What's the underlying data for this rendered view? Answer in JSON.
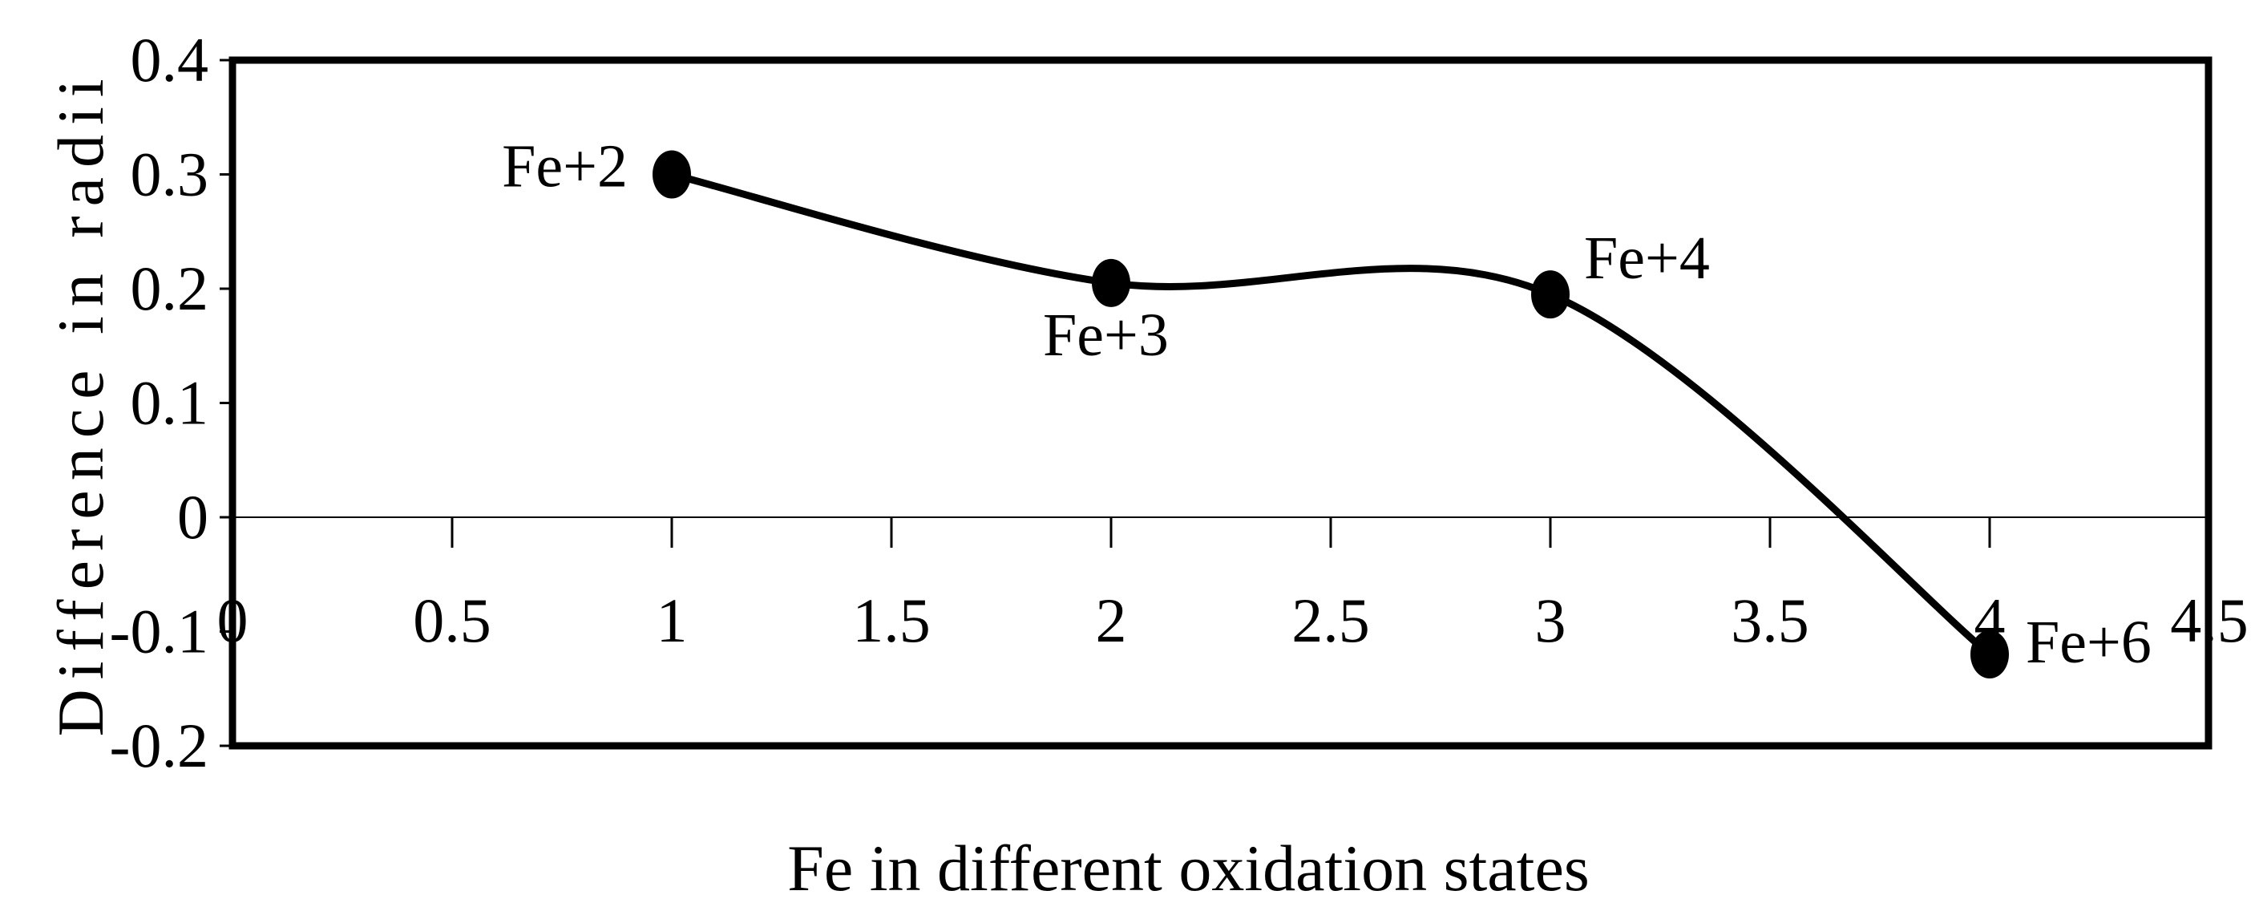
{
  "chart_data": {
    "type": "line",
    "smooth": true,
    "xlabel": "Fe in different oxidation states",
    "ylabel": "Difference in radii",
    "xlim": [
      0,
      4.5
    ],
    "ylim": [
      -0.2,
      0.4
    ],
    "x_ticks": [
      0,
      0.5,
      1,
      1.5,
      2,
      2.5,
      3,
      3.5,
      4,
      4.5
    ],
    "x_tick_labels": [
      "0",
      "0.5",
      "1",
      "1.5",
      "2",
      "2.5",
      "3",
      "3.5",
      "4",
      "4.5"
    ],
    "y_ticks": [
      0.4,
      0.3,
      0.2,
      0.1,
      0,
      -0.1,
      -0.2
    ],
    "y_tick_labels": [
      "0.4",
      "0.3",
      "0.2",
      "0.1",
      "0",
      "-0.1",
      "-0.2"
    ],
    "grid": false,
    "legend": "none",
    "series": [
      {
        "x": [
          1,
          2,
          3,
          4
        ],
        "y": [
          0.3,
          0.205,
          0.195,
          -0.12
        ],
        "point_labels": [
          "Fe+2",
          "Fe+3",
          "Fe+4",
          "Fe+6"
        ]
      }
    ],
    "colors": {
      "line": "#000000",
      "marker": "#000000",
      "frame": "#000000"
    }
  }
}
